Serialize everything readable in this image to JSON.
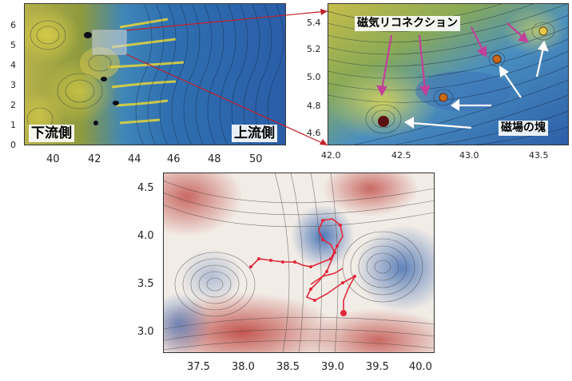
{
  "panel_a": {
    "label_downstream": "下流側",
    "label_upstream": "上流側",
    "y_ticks": [
      "6",
      "5",
      "4",
      "3",
      "2",
      "1",
      "0"
    ],
    "x_ticks": [
      "40",
      "42",
      "44",
      "46",
      "48",
      "50"
    ]
  },
  "panel_b": {
    "label_reconnection": "磁気リコネクション",
    "label_clump": "磁場の塊",
    "y_ticks": [
      "5.4",
      "5.2",
      "5.0",
      "4.8",
      "4.6"
    ],
    "x_ticks": [
      "42.0",
      "42.5",
      "43.0",
      "43.5"
    ]
  },
  "panel_c": {
    "y_ticks": [
      "4.5",
      "4.0",
      "3.5",
      "3.0"
    ],
    "x_ticks": [
      "37.5",
      "38.0",
      "38.5",
      "39.0",
      "39.5",
      "40.0"
    ]
  },
  "colors": {
    "arrow_magenta": "#c2409a",
    "arrow_white": "#ffffff",
    "connector_red": "#c0202a",
    "trajectory_red": "#e0283c"
  }
}
